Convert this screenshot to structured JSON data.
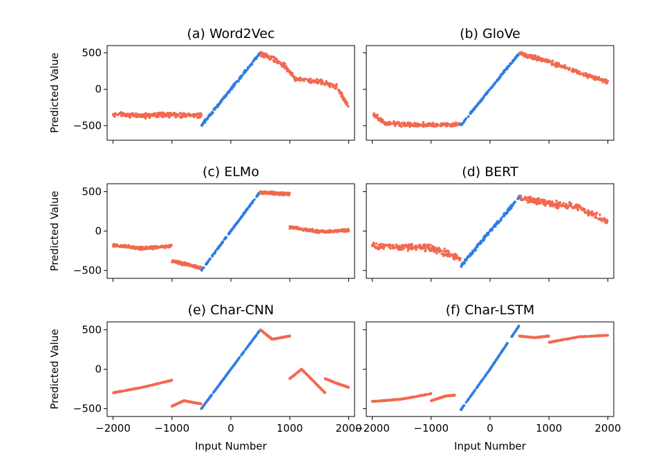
{
  "figure": {
    "xlabel": "Input Number",
    "ylabel": "Predicted Value",
    "colors": {
      "in_range": "#2f7de1",
      "out_of_range": "#f2694f"
    }
  },
  "chart_data": [
    {
      "type": "scatter",
      "title": "(a) Word2Vec",
      "xlabel": "",
      "ylabel": "Predicted Value",
      "xlim": [
        -2100,
        2100
      ],
      "ylim": [
        -700,
        600
      ],
      "xticks": [
        -2000,
        -1000,
        0,
        1000,
        2000
      ],
      "xtick_labels": [
        "",
        "",
        "",
        "",
        ""
      ],
      "yticks": [
        -500,
        0,
        500
      ],
      "ytick_labels": [
        "−500",
        "0",
        "500"
      ],
      "series": [
        {
          "color": "#f2694f",
          "x": [
            -2000,
            -1500,
            -1000,
            -500
          ],
          "y": [
            -340,
            -360,
            -350,
            -360
          ]
        },
        {
          "color": "#2f7de1",
          "x": [
            -500,
            0,
            500
          ],
          "y": [
            -500,
            0,
            500
          ]
        },
        {
          "color": "#f2694f",
          "x": [
            500,
            700,
            900,
            1100,
            1500,
            1800,
            2000
          ],
          "y": [
            490,
            430,
            330,
            140,
            110,
            30,
            -240
          ]
        }
      ]
    },
    {
      "type": "scatter",
      "title": "(b) GloVe",
      "xlabel": "",
      "ylabel": "",
      "xlim": [
        -2100,
        2100
      ],
      "ylim": [
        -700,
        600
      ],
      "xticks": [
        -2000,
        -1000,
        0,
        1000,
        2000
      ],
      "xtick_labels": [
        "",
        "",
        "",
        "",
        ""
      ],
      "yticks": [
        -500,
        0,
        500
      ],
      "ytick_labels": [
        "",
        "",
        ""
      ],
      "series": [
        {
          "color": "#f2694f",
          "x": [
            -2000,
            -1800,
            -1500,
            -1000,
            -500
          ],
          "y": [
            -330,
            -460,
            -480,
            -490,
            -480
          ]
        },
        {
          "color": "#2f7de1",
          "x": [
            -500,
            0,
            500
          ],
          "y": [
            -500,
            0,
            500
          ]
        },
        {
          "color": "#f2694f",
          "x": [
            500,
            1000,
            1500,
            2000
          ],
          "y": [
            490,
            380,
            230,
            100
          ]
        }
      ]
    },
    {
      "type": "scatter",
      "title": "(c) ELMo",
      "xlabel": "",
      "ylabel": "Predicted Value",
      "xlim": [
        -2100,
        2100
      ],
      "ylim": [
        -600,
        600
      ],
      "xticks": [
        -2000,
        -1000,
        0,
        1000,
        2000
      ],
      "xtick_labels": [
        "",
        "",
        "",
        "",
        ""
      ],
      "yticks": [
        -500,
        0,
        500
      ],
      "ytick_labels": [
        "−500",
        "0",
        "500"
      ],
      "series": [
        {
          "color": "#f2694f",
          "x": [
            -2000,
            -1500,
            -1000
          ],
          "y": [
            -180,
            -220,
            -190
          ]
        },
        {
          "color": "#f2694f",
          "x": [
            -1000,
            -750,
            -500
          ],
          "y": [
            -380,
            -420,
            -470
          ]
        },
        {
          "color": "#2f7de1",
          "x": [
            -500,
            0,
            500
          ],
          "y": [
            -500,
            0,
            500
          ]
        },
        {
          "color": "#f2694f",
          "x": [
            500,
            750,
            1000
          ],
          "y": [
            490,
            480,
            470
          ]
        },
        {
          "color": "#f2694f",
          "x": [
            1000,
            1500,
            2000
          ],
          "y": [
            50,
            -10,
            10
          ]
        }
      ]
    },
    {
      "type": "scatter",
      "title": "(d) BERT",
      "xlabel": "",
      "ylabel": "",
      "xlim": [
        -2100,
        2100
      ],
      "ylim": [
        -600,
        600
      ],
      "xticks": [
        -2000,
        -1000,
        0,
        1000,
        2000
      ],
      "xtick_labels": [
        "",
        "",
        "",
        "",
        ""
      ],
      "yticks": [
        -500,
        0,
        500
      ],
      "ytick_labels": [
        "",
        "",
        ""
      ],
      "series": [
        {
          "color": "#f2694f",
          "x": [
            -2000,
            -1500,
            -1000,
            -500
          ],
          "y": [
            -190,
            -200,
            -210,
            -350
          ]
        },
        {
          "color": "#2f7de1",
          "x": [
            -500,
            0,
            500
          ],
          "y": [
            -450,
            0,
            430
          ]
        },
        {
          "color": "#f2694f",
          "x": [
            500,
            1000,
            1500,
            2000
          ],
          "y": [
            420,
            350,
            300,
            120
          ]
        }
      ]
    },
    {
      "type": "scatter",
      "title": "(e) Char-CNN",
      "xlabel": "Input Number",
      "ylabel": "Predicted Value",
      "xlim": [
        -2100,
        2100
      ],
      "ylim": [
        -600,
        600
      ],
      "xticks": [
        -2000,
        -1000,
        0,
        1000,
        2000
      ],
      "xtick_labels": [
        "−2000",
        "−1000",
        "0",
        "1000",
        "2000"
      ],
      "yticks": [
        -500,
        0,
        500
      ],
      "ytick_labels": [
        "−500",
        "0",
        "500"
      ],
      "series": [
        {
          "color": "#f2694f",
          "x": [
            -2000,
            -1500,
            -1000
          ],
          "y": [
            -300,
            -230,
            -140
          ]
        },
        {
          "color": "#f2694f",
          "x": [
            -1000,
            -800,
            -500
          ],
          "y": [
            -470,
            -400,
            -440
          ]
        },
        {
          "color": "#2f7de1",
          "x": [
            -500,
            0,
            500
          ],
          "y": [
            -500,
            0,
            500
          ]
        },
        {
          "color": "#f2694f",
          "x": [
            500,
            700,
            1000
          ],
          "y": [
            500,
            380,
            420
          ]
        },
        {
          "color": "#f2694f",
          "x": [
            1000,
            1200,
            1600
          ],
          "y": [
            -120,
            0,
            -300
          ]
        },
        {
          "color": "#f2694f",
          "x": [
            1600,
            1800,
            2000
          ],
          "y": [
            -120,
            -180,
            -230
          ]
        }
      ]
    },
    {
      "type": "scatter",
      "title": "(f) Char-LSTM",
      "xlabel": "Input Number",
      "ylabel": "",
      "xlim": [
        -2100,
        2100
      ],
      "ylim": [
        -600,
        600
      ],
      "xticks": [
        -2000,
        -1000,
        0,
        1000,
        2000
      ],
      "xtick_labels": [
        "−2000",
        "−1000",
        "0",
        "1000",
        "2000"
      ],
      "yticks": [
        -500,
        0,
        500
      ],
      "ytick_labels": [
        "",
        "",
        ""
      ],
      "series": [
        {
          "color": "#f2694f",
          "x": [
            -2000,
            -1500,
            -1000
          ],
          "y": [
            -410,
            -380,
            -310
          ]
        },
        {
          "color": "#f2694f",
          "x": [
            -1000,
            -750,
            -600
          ],
          "y": [
            -400,
            -340,
            -330
          ]
        },
        {
          "color": "#2f7de1",
          "x": [
            -500,
            0,
            500
          ],
          "y": [
            -520,
            0,
            560
          ]
        },
        {
          "color": "#f2694f",
          "x": [
            500,
            750,
            1000
          ],
          "y": [
            420,
            400,
            420
          ]
        },
        {
          "color": "#f2694f",
          "x": [
            1000,
            1500,
            2000
          ],
          "y": [
            340,
            410,
            430
          ]
        }
      ]
    }
  ]
}
